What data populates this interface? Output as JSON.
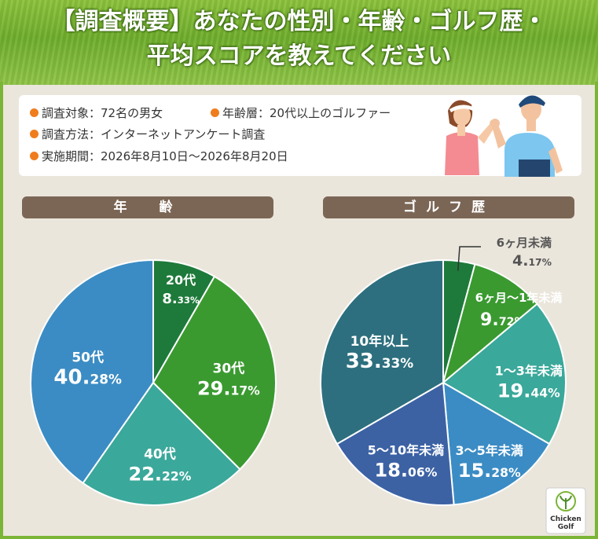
{
  "title_lines": [
    "【調査概要】あなたの性別・年齢・ゴルフ歴・",
    "平均スコアを教えてください"
  ],
  "survey": {
    "target": "調査対象：72名の男女",
    "age_range": "年齢層：20代以上のゴルファー",
    "method": "調査方法：インターネットアンケート調査",
    "period": "実施期間：2026年8月10日〜2026年8月20日"
  },
  "logo_text": [
    "Chicken",
    "Golf"
  ],
  "colors": {
    "grass": "#7bb536",
    "section_bar": "#7b6655",
    "bullet": "#ef7d1d",
    "age": [
      "#1e7a3a",
      "#3a9a30",
      "#3aa89a",
      "#3b8cc4"
    ],
    "golf": [
      "#1e7a3a",
      "#3a9a30",
      "#3aa89a",
      "#3b8cc4",
      "#3c62a4",
      "#2d6f7e"
    ]
  },
  "chart_data": [
    {
      "type": "pie",
      "title": "年　齢",
      "categories": [
        "20代",
        "30代",
        "40代",
        "50代"
      ],
      "values": [
        8.33,
        29.17,
        22.22,
        40.28
      ],
      "unit": "%"
    },
    {
      "type": "pie",
      "title": "ゴルフ歴",
      "categories": [
        "6ヶ月未満",
        "6ヶ月〜1年未満",
        "1〜3年未満",
        "3〜5年未満",
        "5〜10年未満",
        "10年以上"
      ],
      "values": [
        4.17,
        9.72,
        19.44,
        15.28,
        18.06,
        33.33
      ],
      "unit": "%"
    }
  ]
}
